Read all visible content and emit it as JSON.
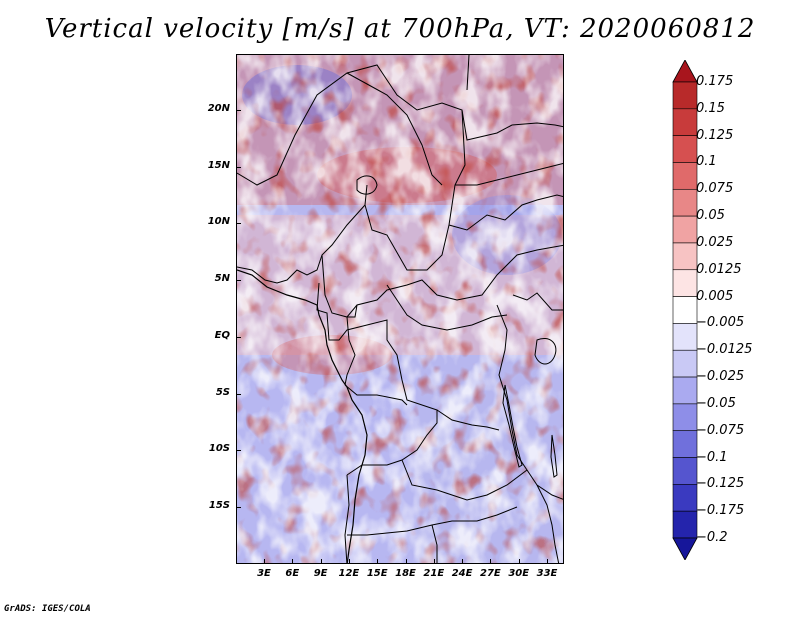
{
  "title": "Vertical velocity [m/s] at 700hPa, VT: 2020060812",
  "map": {
    "lat_labels": [
      "20N",
      "15N",
      "10N",
      "5N",
      "EQ",
      "5S",
      "10S",
      "15S"
    ],
    "lon_labels": [
      "3E",
      "6E",
      "9E",
      "12E",
      "15E",
      "18E",
      "21E",
      "24E",
      "27E",
      "30E",
      "33E"
    ],
    "field": "vertical velocity at 700hPa (m/s)"
  },
  "colorbar": {
    "labels": [
      "0.175",
      "0.15",
      "0.125",
      "0.1",
      "0.075",
      "0.05",
      "0.025",
      "0.0125",
      "0.005",
      "−0.005",
      "−0.0125",
      "−0.025",
      "−0.05",
      "−0.075",
      "−0.1",
      "−0.125",
      "−0.175",
      "−0.2"
    ],
    "colors": [
      "#a8151d",
      "#b82a2a",
      "#c83b3b",
      "#d65050",
      "#e06a6a",
      "#e88787",
      "#f0a3a3",
      "#f7c3c3",
      "#fde4e4",
      "#ffffff",
      "#e3e3fb",
      "#c9c9f5",
      "#aaaaf0",
      "#8e8ee8",
      "#7070dc",
      "#5555cf",
      "#3a3ac0",
      "#2424ac",
      "#16169a"
    ]
  },
  "credit": "GrADS: IGES/COLA"
}
